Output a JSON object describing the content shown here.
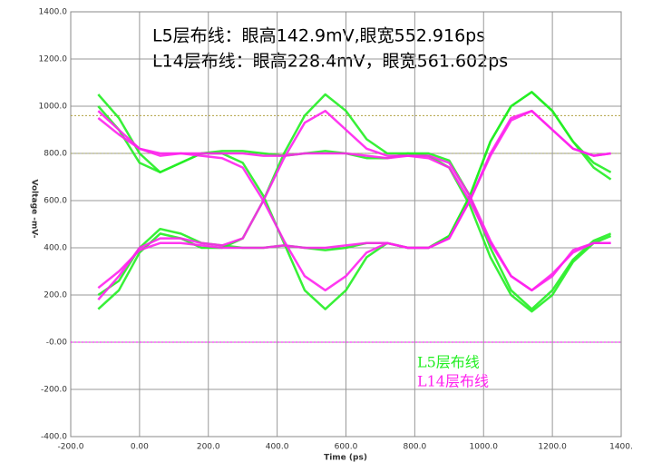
{
  "chart_data": {
    "type": "eye",
    "annotations": [
      "L5层布线：眼高142.9mV,眼宽552.916ps",
      "L14层布线：眼高228.4mV，眼宽561.602ps"
    ],
    "xlabel": "Time (ps)",
    "ylabel": "Voltage -mV-",
    "xlim": [
      -200,
      1400
    ],
    "xticks": [
      {
        "value": -200,
        "label": "-200.0"
      },
      {
        "value": 0,
        "label": "0.00"
      },
      {
        "value": 200,
        "label": "200.0"
      },
      {
        "value": 400,
        "label": "400.0"
      },
      {
        "value": 600,
        "label": "600.0"
      },
      {
        "value": 800,
        "label": "800.0"
      },
      {
        "value": 1000,
        "label": "1000.0"
      },
      {
        "value": 1200,
        "label": "1200.0"
      },
      {
        "value": 1400,
        "label": "1400."
      }
    ],
    "ylim": [
      -400,
      1400
    ],
    "yticks": [
      {
        "value": -400,
        "label": "-400.0"
      },
      {
        "value": -200,
        "label": "-200.0"
      },
      {
        "value": 0,
        "label": "-0.00"
      },
      {
        "value": 200,
        "label": "200.0"
      },
      {
        "value": 400,
        "label": "400.0"
      },
      {
        "value": 600,
        "label": "600.0"
      },
      {
        "value": 800,
        "label": "800.0"
      },
      {
        "value": 1000,
        "label": "1000.0"
      },
      {
        "value": 1200,
        "label": "1200.0"
      },
      {
        "value": 1400,
        "label": "1400.0"
      }
    ],
    "grid": true,
    "hlines": [
      {
        "value": 960,
        "color": "#b0a040"
      },
      {
        "value": 800,
        "color": "#a0a060"
      },
      {
        "value": 0,
        "color": "#ff00ff"
      }
    ],
    "x": [
      -120,
      -60,
      0,
      60,
      120,
      180,
      240,
      300,
      360,
      420,
      480,
      540,
      600,
      660,
      720,
      780,
      840,
      900,
      960,
      1020,
      1080,
      1140,
      1200,
      1260,
      1320,
      1370
    ],
    "series": [
      {
        "name": "L5层布线",
        "color": "#22ee22",
        "values": [
          [
            1050,
            950,
            800,
            720,
            760,
            800,
            800,
            760,
            620,
            420,
            220,
            140,
            220,
            360,
            420,
            400,
            400,
            450,
            620,
            850,
            1000,
            1060,
            980,
            850,
            760,
            720
          ],
          [
            140,
            220,
            380,
            460,
            440,
            400,
            400,
            440,
            600,
            800,
            960,
            1050,
            980,
            860,
            800,
            800,
            790,
            740,
            580,
            360,
            200,
            130,
            200,
            340,
            420,
            450
          ],
          [
            1000,
            900,
            760,
            720,
            760,
            800,
            810,
            810,
            800,
            790,
            800,
            810,
            800,
            780,
            780,
            800,
            800,
            770,
            620,
            400,
            220,
            140,
            220,
            350,
            430,
            460
          ],
          [
            200,
            260,
            400,
            480,
            460,
            420,
            410,
            400,
            400,
            410,
            400,
            390,
            400,
            420,
            420,
            400,
            400,
            450,
            620,
            850,
            1000,
            1060,
            980,
            850,
            740,
            690
          ]
        ]
      },
      {
        "name": "L14层布线",
        "color": "#ff22ee",
        "values": [
          [
            980,
            900,
            820,
            800,
            800,
            790,
            780,
            740,
            600,
            430,
            280,
            220,
            280,
            380,
            420,
            400,
            400,
            440,
            600,
            800,
            950,
            980,
            900,
            820,
            790,
            800
          ],
          [
            180,
            280,
            400,
            440,
            440,
            420,
            410,
            440,
            600,
            780,
            930,
            980,
            900,
            820,
            790,
            790,
            780,
            740,
            600,
            420,
            280,
            220,
            290,
            380,
            420,
            420
          ],
          [
            950,
            880,
            820,
            790,
            800,
            800,
            800,
            800,
            790,
            790,
            800,
            800,
            800,
            790,
            780,
            790,
            790,
            760,
            620,
            430,
            280,
            220,
            280,
            390,
            420,
            420
          ],
          [
            230,
            300,
            390,
            420,
            420,
            410,
            400,
            400,
            400,
            410,
            400,
            400,
            410,
            420,
            420,
            400,
            400,
            440,
            600,
            790,
            940,
            980,
            900,
            820,
            790,
            800
          ]
        ]
      }
    ]
  }
}
